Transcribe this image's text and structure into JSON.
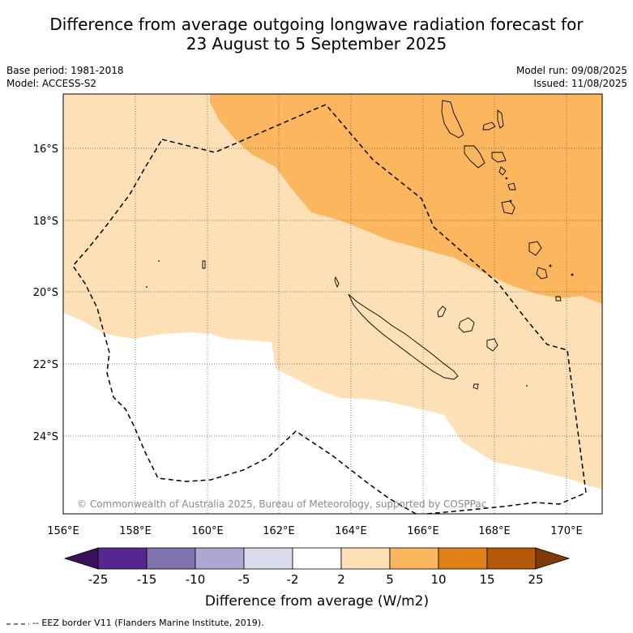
{
  "title": {
    "line1": "Difference from average outgoing longwave radiation forecast for",
    "line2": "23 August to 5 September 2025"
  },
  "meta": {
    "base_period": "Base period: 1981-2018",
    "model": "Model: ACCESS-S2",
    "model_run": "Model run: 09/08/2025",
    "issued": "Issued: 11/08/2025"
  },
  "map": {
    "extent": {
      "lon": [
        156,
        171
      ],
      "lat": [
        -26.1,
        -14.7
      ]
    },
    "lat_labels": [
      "16°S",
      "18°S",
      "20°S",
      "22°S",
      "24°S"
    ],
    "lon_labels": [
      "156°E",
      "158°E",
      "160°E",
      "162°E",
      "164°E",
      "166°E",
      "168°E",
      "170°E"
    ],
    "copyright": "© Commonwealth of Australia 2025, Bureau of Meteorology, supported by COSPPac",
    "fills": {
      "light_orange": "#fde0b5",
      "orange": "#fbb65e",
      "background": "#ffffff"
    }
  },
  "colorbar": {
    "label": "Difference from average (W/m2)",
    "ticks": [
      "-25",
      "-15",
      "-10",
      "-5",
      "-2",
      "2",
      "5",
      "10",
      "15",
      "25"
    ],
    "colors": [
      "#3b0f5a",
      "#55278f",
      "#7f72ad",
      "#b0a6d2",
      "#dadbec",
      "#ffffff",
      "#fde0b5",
      "#fbb65e",
      "#e08118",
      "#b35808",
      "#7f3b08"
    ]
  },
  "legend": {
    "eez_text": "-- EEZ border V11 (Flanders Marine Institute, 2019)."
  }
}
